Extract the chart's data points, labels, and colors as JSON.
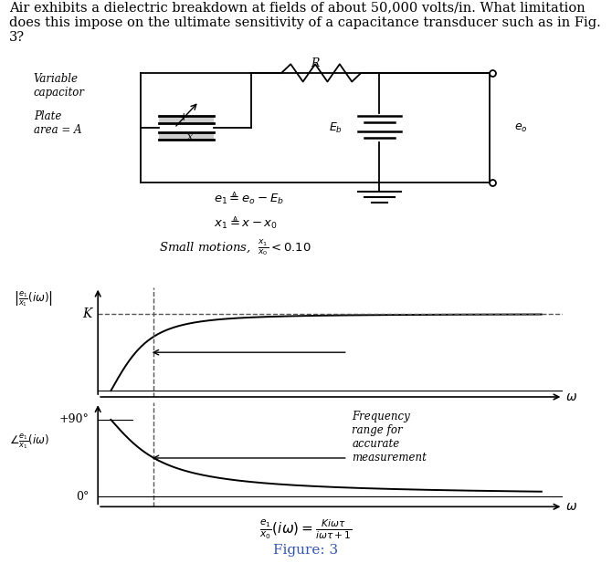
{
  "title_text": "Air exhibits a dielectric breakdown at fields of about 50,000 volts/in. What limitation\ndoes this impose on the ultimate sensitivity of a capacitance transducer such as in Fig.\n3?",
  "title_fontsize": 10.5,
  "title_color": "#000000",
  "fig_caption": "Figure: 3",
  "fig_caption_color": "#3355aa",
  "background_color": "#ffffff",
  "line_color": "#000000",
  "dashed_color": "#555555",
  "omega_cutoff": 1.0,
  "tau": 1.0,
  "graph_K_label": "K",
  "graph_plus90_label": "+90°",
  "graph_0_label": "0°",
  "graph_omega_label": "ω",
  "freq_annotation": "Frequency\nrange for\naccurate\nmeasurement",
  "formula_text": "$\\frac{e_1}{x_0}(i\\omega) = \\frac{Ki\\omega\\tau}{i\\omega\\tau + 1}$"
}
